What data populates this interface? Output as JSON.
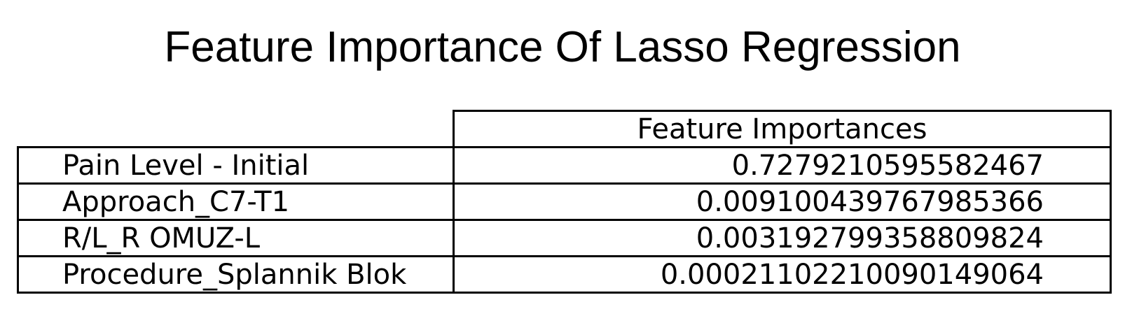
{
  "chart_data": {
    "type": "table",
    "title": "Feature Importance Of Lasso Regression",
    "columns": [
      "Feature Importances"
    ],
    "rows": [
      {
        "label": "Pain Level - Initial",
        "value": "0.7279210595582467"
      },
      {
        "label": "Approach_C7-T1",
        "value": "0.009100439767985366"
      },
      {
        "label": "R/L_R OMUZ-L",
        "value": "0.003192799358809824"
      },
      {
        "label": "Procedure_Splannik Blok",
        "value": "0.00021102210090149064"
      }
    ]
  }
}
